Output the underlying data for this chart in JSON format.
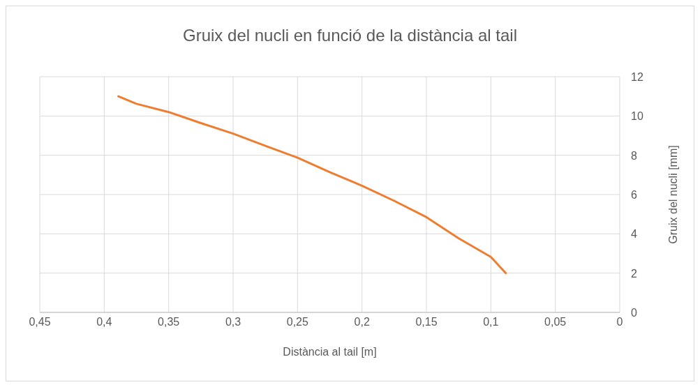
{
  "chart_data": {
    "type": "line",
    "title": "Gruix del nucli en funció de la distància al tail",
    "xlabel": "Distància al tail [m]",
    "ylabel": "Gruix del nucli [mm]",
    "x": [
      0.389,
      0.375,
      0.35,
      0.325,
      0.3,
      0.275,
      0.25,
      0.225,
      0.2,
      0.175,
      0.15,
      0.125,
      0.1,
      0.0884
    ],
    "series": [
      {
        "color": "#ed7d31",
        "values": [
          11.0,
          10.62,
          10.2,
          9.64,
          9.1,
          8.48,
          7.88,
          7.14,
          6.45,
          5.68,
          4.85,
          3.77,
          2.82,
          2.0
        ]
      }
    ],
    "xlim": [
      0.45,
      0
    ],
    "xticks": [
      {
        "value": 0.45,
        "label": "0,45"
      },
      {
        "value": 0.4,
        "label": "0,4"
      },
      {
        "value": 0.35,
        "label": "0,35"
      },
      {
        "value": 0.3,
        "label": "0,3"
      },
      {
        "value": 0.25,
        "label": "0,25"
      },
      {
        "value": 0.2,
        "label": "0,2"
      },
      {
        "value": 0.15,
        "label": "0,15"
      },
      {
        "value": 0.1,
        "label": "0,1"
      },
      {
        "value": 0.05,
        "label": "0,05"
      },
      {
        "value": 0,
        "label": "0"
      }
    ],
    "ylim": [
      0,
      12
    ],
    "yticks": [
      0,
      2,
      4,
      6,
      8,
      10,
      12
    ],
    "grid": true,
    "marker": "none",
    "line_style": "solid"
  }
}
